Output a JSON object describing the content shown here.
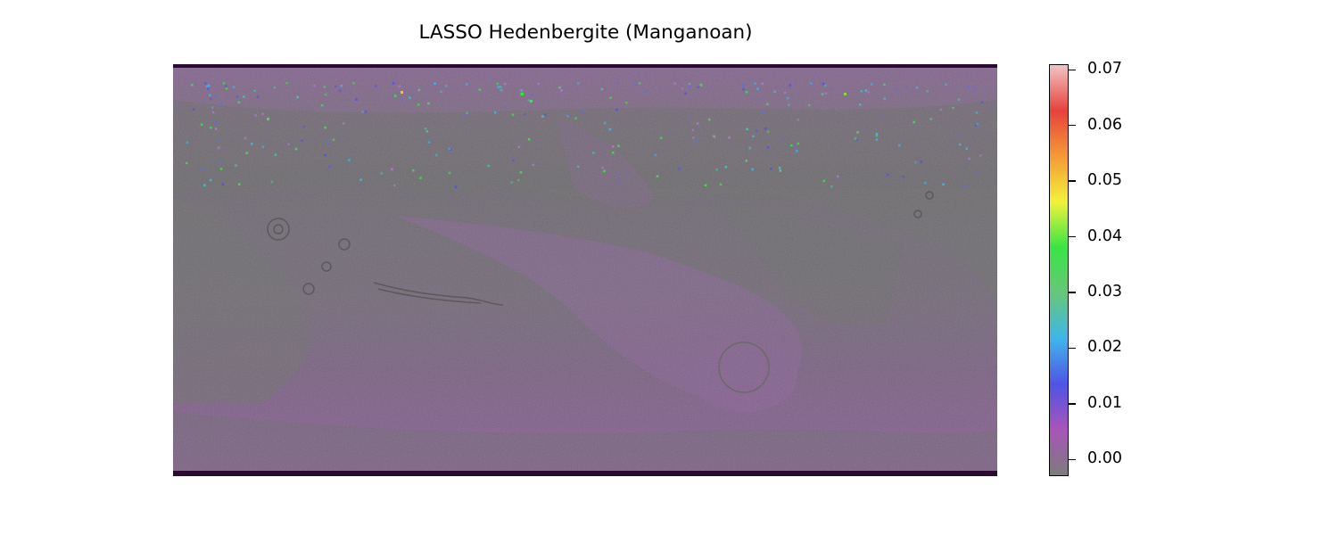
{
  "title": "LASSO Hedenbergite (Manganoan)",
  "colorbar": {
    "min": -0.003,
    "max": 0.071,
    "ticks": [
      {
        "label": "0.00",
        "value": 0.0
      },
      {
        "label": "0.01",
        "value": 0.01
      },
      {
        "label": "0.02",
        "value": 0.02
      },
      {
        "label": "0.03",
        "value": 0.03
      },
      {
        "label": "0.04",
        "value": 0.04
      },
      {
        "label": "0.05",
        "value": 0.05
      },
      {
        "label": "0.06",
        "value": 0.06
      },
      {
        "label": "0.07",
        "value": 0.07
      }
    ],
    "colors": [
      "#7c7c7c",
      "#a855b8",
      "#4f54e6",
      "#3fb6ea",
      "#66c77a",
      "#39e545",
      "#f2f23a",
      "#f49a35",
      "#e8413d",
      "#f0c4c4"
    ]
  },
  "map": {
    "background_color": "#7e5e8a",
    "border_color": "#2c0b33"
  }
}
